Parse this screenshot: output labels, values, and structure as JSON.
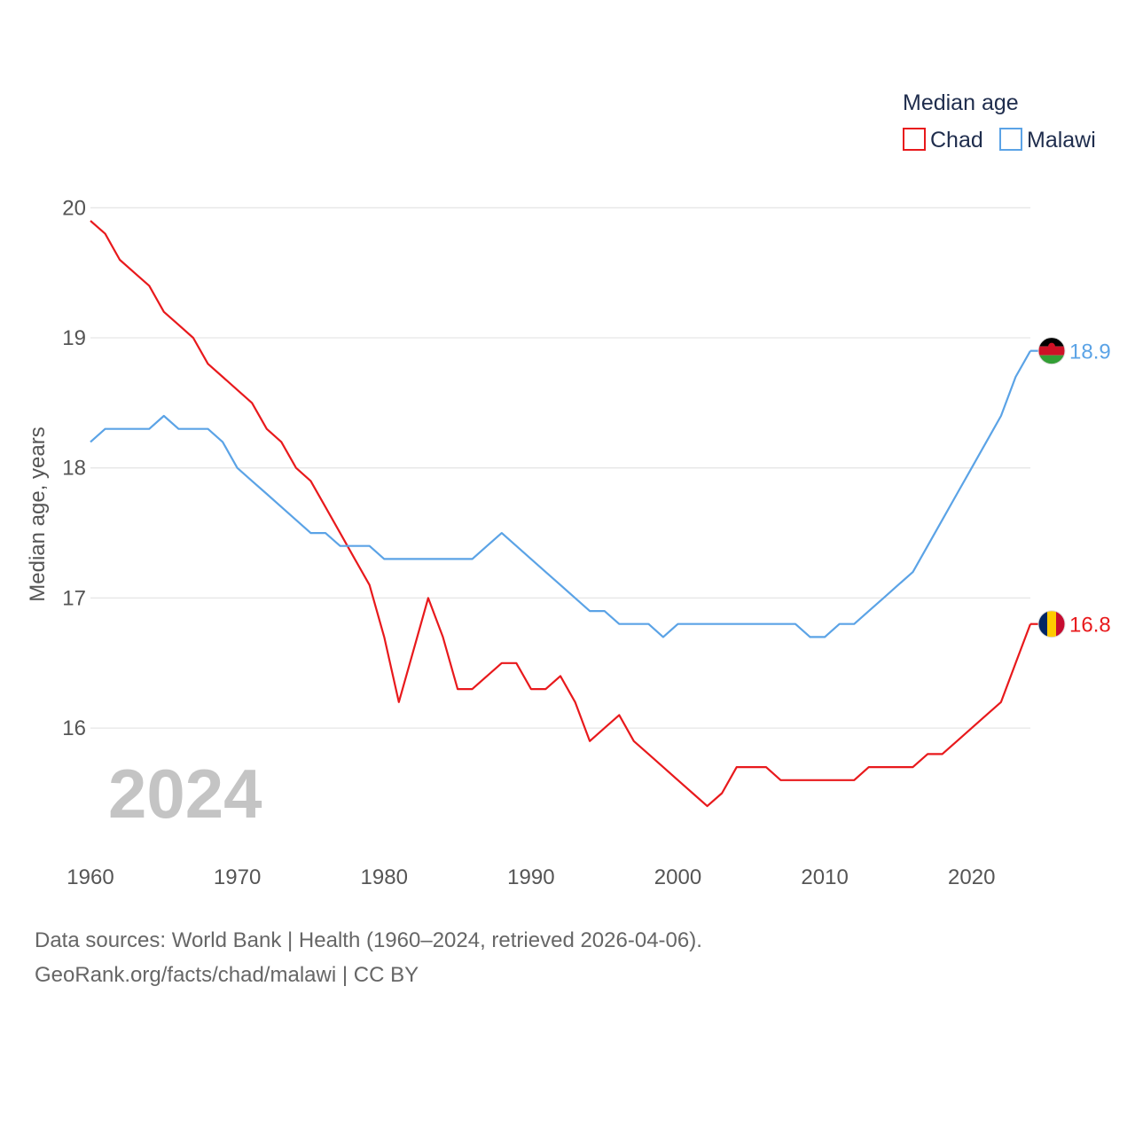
{
  "chart_data": {
    "type": "line",
    "legend_title": "Median age",
    "ylabel": "Median age, years",
    "xlabel": "",
    "year_watermark": "2024",
    "xlim": [
      1960,
      2024
    ],
    "ylim": [
      15.1,
      20.1
    ],
    "x_ticks": [
      1960,
      1970,
      1980,
      1990,
      2000,
      2010,
      2020
    ],
    "y_ticks": [
      16,
      17,
      18,
      19,
      20
    ],
    "legend_position": "top-right",
    "x": [
      1960,
      1961,
      1962,
      1963,
      1964,
      1965,
      1966,
      1967,
      1968,
      1969,
      1970,
      1971,
      1972,
      1973,
      1974,
      1975,
      1976,
      1977,
      1978,
      1979,
      1980,
      1981,
      1982,
      1983,
      1984,
      1985,
      1986,
      1987,
      1988,
      1989,
      1990,
      1991,
      1992,
      1993,
      1994,
      1995,
      1996,
      1997,
      1998,
      1999,
      2000,
      2001,
      2002,
      2003,
      2004,
      2005,
      2006,
      2007,
      2008,
      2009,
      2010,
      2011,
      2012,
      2013,
      2014,
      2015,
      2016,
      2017,
      2018,
      2019,
      2020,
      2021,
      2022,
      2023,
      2024
    ],
    "series": [
      {
        "name": "Chad",
        "color": "#e8191c",
        "end_label": "16.8",
        "flag": "chad",
        "values": [
          19.9,
          19.8,
          19.6,
          19.5,
          19.4,
          19.2,
          19.1,
          19.0,
          18.8,
          18.7,
          18.6,
          18.5,
          18.3,
          18.2,
          18.0,
          17.9,
          17.7,
          17.5,
          17.3,
          17.1,
          16.7,
          16.2,
          16.6,
          17.0,
          16.7,
          16.3,
          16.3,
          16.4,
          16.5,
          16.5,
          16.3,
          16.3,
          16.4,
          16.2,
          15.9,
          16.0,
          16.1,
          15.9,
          15.8,
          15.7,
          15.6,
          15.5,
          15.4,
          15.5,
          15.7,
          15.7,
          15.7,
          15.6,
          15.6,
          15.6,
          15.6,
          15.6,
          15.6,
          15.7,
          15.7,
          15.7,
          15.7,
          15.8,
          15.8,
          15.9,
          16.0,
          16.1,
          16.2,
          16.5,
          16.8
        ]
      },
      {
        "name": "Malawi",
        "color": "#5ba3e6",
        "end_label": "18.9",
        "flag": "malawi",
        "values": [
          18.2,
          18.3,
          18.3,
          18.3,
          18.3,
          18.4,
          18.3,
          18.3,
          18.3,
          18.2,
          18.0,
          17.9,
          17.8,
          17.7,
          17.6,
          17.5,
          17.5,
          17.4,
          17.4,
          17.4,
          17.3,
          17.3,
          17.3,
          17.3,
          17.3,
          17.3,
          17.3,
          17.4,
          17.5,
          17.4,
          17.3,
          17.2,
          17.1,
          17.0,
          16.9,
          16.9,
          16.8,
          16.8,
          16.8,
          16.7,
          16.8,
          16.8,
          16.8,
          16.8,
          16.8,
          16.8,
          16.8,
          16.8,
          16.8,
          16.7,
          16.7,
          16.8,
          16.8,
          16.9,
          17.0,
          17.1,
          17.2,
          17.4,
          17.6,
          17.8,
          18.0,
          18.2,
          18.4,
          18.7,
          18.9
        ]
      }
    ]
  },
  "footer": {
    "sources": "Data sources: World Bank | Health (1960–2024, retrieved 2026-04-06).",
    "credit": "GeoRank.org/facts/chad/malawi | CC BY"
  }
}
